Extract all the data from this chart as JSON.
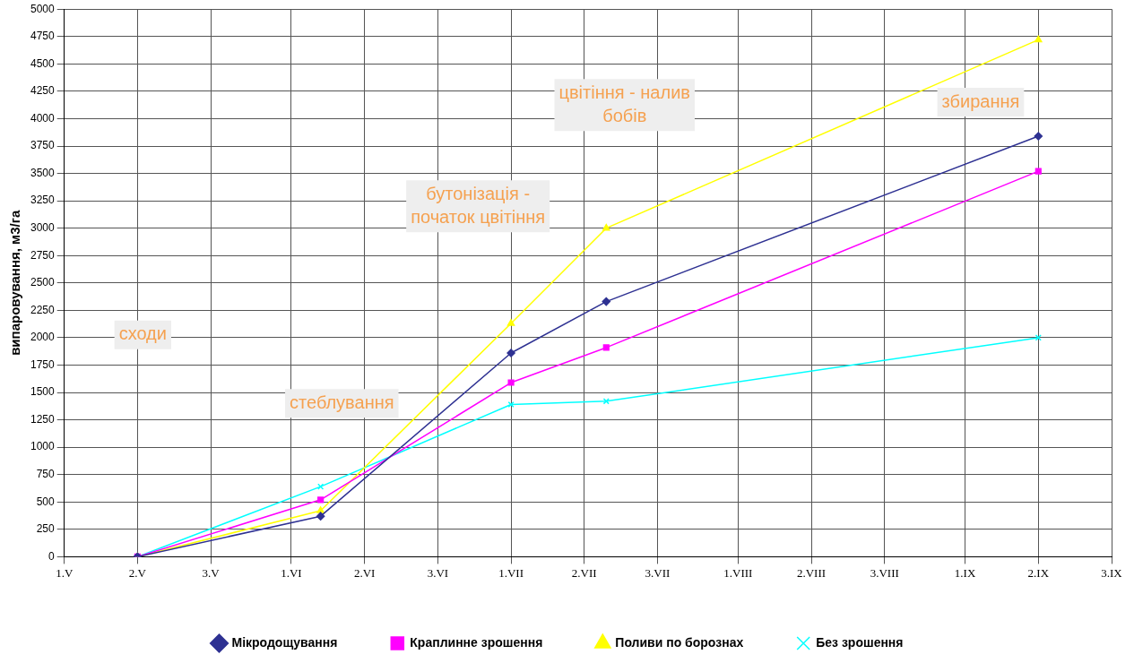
{
  "chart_data": {
    "type": "line",
    "ylabel": "випаровування, м3/га",
    "xlim": [
      "--05-01",
      "--09-21"
    ],
    "xticks": [
      {
        "value": "--05-01",
        "label": "1.V"
      },
      {
        "value": "--05-11",
        "label": "2.V"
      },
      {
        "value": "--05-21",
        "label": "3.V"
      },
      {
        "value": "--06-01",
        "label": "1.VI"
      },
      {
        "value": "--06-11",
        "label": "2.VI"
      },
      {
        "value": "--06-21",
        "label": "3.VI"
      },
      {
        "value": "--07-01",
        "label": "1.VII"
      },
      {
        "value": "--07-11",
        "label": "2.VII"
      },
      {
        "value": "--07-21",
        "label": "3.VII"
      },
      {
        "value": "--08-01",
        "label": "1.VIII"
      },
      {
        "value": "--08-11",
        "label": "2.VIII"
      },
      {
        "value": "--08-21",
        "label": "3.VIII"
      },
      {
        "value": "--09-01",
        "label": "1.IX"
      },
      {
        "value": "--09-11",
        "label": "2.IX"
      },
      {
        "value": "--09-21",
        "label": "3.IX"
      }
    ],
    "ylim": [
      0,
      5000
    ],
    "yticks": [
      0,
      250,
      500,
      750,
      1000,
      1250,
      1500,
      1750,
      2000,
      2250,
      2500,
      2750,
      3000,
      3250,
      3500,
      3750,
      4000,
      4250,
      4500,
      4750,
      5000
    ],
    "grid": true,
    "legend": "bottom",
    "line_style": "solid",
    "x": [
      "--05-11",
      "--06-05",
      "--07-01",
      "--07-14",
      "--09-11"
    ],
    "series": [
      {
        "name": "Мікродощування",
        "color": "#2e3192",
        "marker": "diamond",
        "values": [
          0,
          370,
          1860,
          2330,
          3840
        ]
      },
      {
        "name": "Краплинне зрошення",
        "color": "#ff00ff",
        "marker": "square",
        "values": [
          0,
          520,
          1590,
          1910,
          3520
        ]
      },
      {
        "name": "Поливи по борознах",
        "color": "#ffff00",
        "marker": "triangle",
        "values": [
          0,
          420,
          2130,
          3000,
          4720
        ]
      },
      {
        "name": "Без зрошення",
        "color": "#00ffff",
        "marker": "cross",
        "values": [
          0,
          640,
          1390,
          1420,
          2000
        ]
      }
    ],
    "annotations": [
      "сходи",
      "стеблування",
      "бутонізація -\nпочаток цвітіння",
      "цвітіння - налив\nбобів",
      "збирання"
    ]
  }
}
